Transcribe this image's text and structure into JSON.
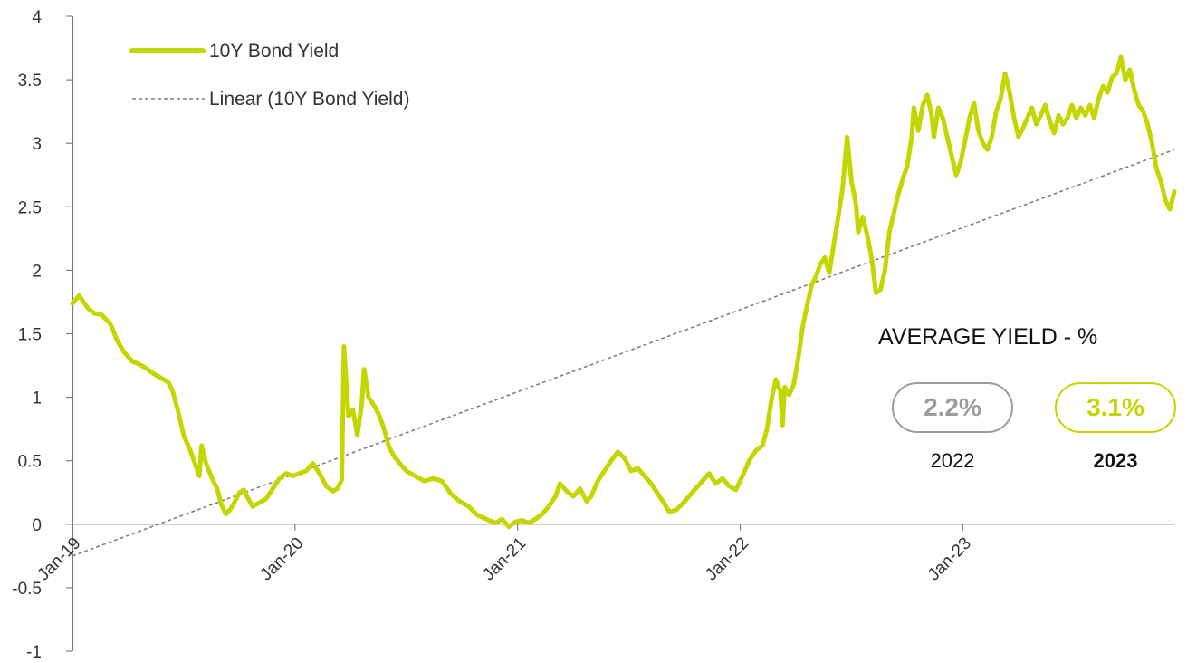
{
  "chart_data": {
    "type": "line",
    "title": "",
    "xlabel": "",
    "ylabel": "",
    "ylim": [
      -1,
      4
    ],
    "yticks": [
      "-1",
      "-0.5",
      "0",
      "0.5",
      "1",
      "1.5",
      "2",
      "2.5",
      "3",
      "3.5",
      "4"
    ],
    "x_tick_labels": [
      "Jan-19",
      "Jan-20",
      "Jan-21",
      "Jan-22",
      "Jan-23"
    ],
    "x_range_years": [
      2019.0,
      2023.95
    ],
    "grid": false,
    "legend_position": "top-left",
    "series": [
      {
        "name": "10Y Bond Yield",
        "color": "#c3d600",
        "points": [
          [
            2019.0,
            1.74
          ],
          [
            2019.03,
            1.8
          ],
          [
            2019.07,
            1.7
          ],
          [
            2019.1,
            1.66
          ],
          [
            2019.13,
            1.65
          ],
          [
            2019.17,
            1.58
          ],
          [
            2019.2,
            1.45
          ],
          [
            2019.23,
            1.36
          ],
          [
            2019.27,
            1.28
          ],
          [
            2019.3,
            1.26
          ],
          [
            2019.33,
            1.23
          ],
          [
            2019.37,
            1.18
          ],
          [
            2019.4,
            1.15
          ],
          [
            2019.43,
            1.12
          ],
          [
            2019.45,
            1.05
          ],
          [
            2019.47,
            0.92
          ],
          [
            2019.5,
            0.7
          ],
          [
            2019.53,
            0.58
          ],
          [
            2019.55,
            0.48
          ],
          [
            2019.57,
            0.38
          ],
          [
            2019.58,
            0.62
          ],
          [
            2019.6,
            0.48
          ],
          [
            2019.63,
            0.35
          ],
          [
            2019.65,
            0.28
          ],
          [
            2019.67,
            0.15
          ],
          [
            2019.69,
            0.08
          ],
          [
            2019.71,
            0.12
          ],
          [
            2019.73,
            0.18
          ],
          [
            2019.75,
            0.25
          ],
          [
            2019.77,
            0.27
          ],
          [
            2019.79,
            0.2
          ],
          [
            2019.81,
            0.14
          ],
          [
            2019.84,
            0.17
          ],
          [
            2019.87,
            0.2
          ],
          [
            2019.9,
            0.28
          ],
          [
            2019.93,
            0.36
          ],
          [
            2019.96,
            0.4
          ],
          [
            2019.99,
            0.38
          ],
          [
            2020.02,
            0.4
          ],
          [
            2020.05,
            0.42
          ],
          [
            2020.08,
            0.48
          ],
          [
            2020.11,
            0.4
          ],
          [
            2020.14,
            0.3
          ],
          [
            2020.17,
            0.26
          ],
          [
            2020.19,
            0.28
          ],
          [
            2020.21,
            0.35
          ],
          [
            2020.22,
            1.4
          ],
          [
            2020.24,
            0.85
          ],
          [
            2020.26,
            0.9
          ],
          [
            2020.28,
            0.7
          ],
          [
            2020.3,
            0.95
          ],
          [
            2020.31,
            1.22
          ],
          [
            2020.33,
            1.0
          ],
          [
            2020.36,
            0.92
          ],
          [
            2020.38,
            0.85
          ],
          [
            2020.4,
            0.75
          ],
          [
            2020.42,
            0.62
          ],
          [
            2020.44,
            0.55
          ],
          [
            2020.47,
            0.48
          ],
          [
            2020.5,
            0.42
          ],
          [
            2020.54,
            0.38
          ],
          [
            2020.58,
            0.34
          ],
          [
            2020.62,
            0.36
          ],
          [
            2020.66,
            0.34
          ],
          [
            2020.7,
            0.24
          ],
          [
            2020.74,
            0.18
          ],
          [
            2020.78,
            0.14
          ],
          [
            2020.82,
            0.07
          ],
          [
            2020.86,
            0.04
          ],
          [
            2020.9,
            0.01
          ],
          [
            2020.93,
            0.04
          ],
          [
            2020.96,
            -0.02
          ],
          [
            2020.99,
            0.02
          ],
          [
            2021.02,
            0.03
          ],
          [
            2021.05,
            0.01
          ],
          [
            2021.08,
            0.04
          ],
          [
            2021.11,
            0.08
          ],
          [
            2021.14,
            0.14
          ],
          [
            2021.17,
            0.22
          ],
          [
            2021.19,
            0.32
          ],
          [
            2021.22,
            0.26
          ],
          [
            2021.25,
            0.22
          ],
          [
            2021.28,
            0.28
          ],
          [
            2021.31,
            0.18
          ],
          [
            2021.33,
            0.22
          ],
          [
            2021.36,
            0.34
          ],
          [
            2021.39,
            0.42
          ],
          [
            2021.42,
            0.5
          ],
          [
            2021.45,
            0.57
          ],
          [
            2021.48,
            0.52
          ],
          [
            2021.51,
            0.42
          ],
          [
            2021.54,
            0.44
          ],
          [
            2021.57,
            0.38
          ],
          [
            2021.6,
            0.32
          ],
          [
            2021.63,
            0.24
          ],
          [
            2021.66,
            0.16
          ],
          [
            2021.68,
            0.1
          ],
          [
            2021.71,
            0.11
          ],
          [
            2021.74,
            0.16
          ],
          [
            2021.77,
            0.22
          ],
          [
            2021.8,
            0.28
          ],
          [
            2021.83,
            0.34
          ],
          [
            2021.86,
            0.4
          ],
          [
            2021.89,
            0.32
          ],
          [
            2021.92,
            0.36
          ],
          [
            2021.95,
            0.3
          ],
          [
            2021.98,
            0.27
          ],
          [
            2022.01,
            0.38
          ],
          [
            2022.04,
            0.5
          ],
          [
            2022.07,
            0.58
          ],
          [
            2022.1,
            0.62
          ],
          [
            2022.12,
            0.75
          ],
          [
            2022.14,
            0.98
          ],
          [
            2022.16,
            1.14
          ],
          [
            2022.18,
            1.05
          ],
          [
            2022.19,
            0.78
          ],
          [
            2022.2,
            1.08
          ],
          [
            2022.22,
            1.02
          ],
          [
            2022.24,
            1.1
          ],
          [
            2022.26,
            1.3
          ],
          [
            2022.28,
            1.55
          ],
          [
            2022.3,
            1.72
          ],
          [
            2022.32,
            1.88
          ],
          [
            2022.34,
            1.95
          ],
          [
            2022.36,
            2.05
          ],
          [
            2022.38,
            2.1
          ],
          [
            2022.4,
            1.98
          ],
          [
            2022.42,
            2.2
          ],
          [
            2022.44,
            2.42
          ],
          [
            2022.46,
            2.65
          ],
          [
            2022.47,
            2.85
          ],
          [
            2022.48,
            3.05
          ],
          [
            2022.5,
            2.7
          ],
          [
            2022.52,
            2.52
          ],
          [
            2022.53,
            2.3
          ],
          [
            2022.55,
            2.42
          ],
          [
            2022.57,
            2.28
          ],
          [
            2022.59,
            2.1
          ],
          [
            2022.61,
            1.82
          ],
          [
            2022.63,
            1.85
          ],
          [
            2022.65,
            2.0
          ],
          [
            2022.67,
            2.3
          ],
          [
            2022.69,
            2.45
          ],
          [
            2022.71,
            2.6
          ],
          [
            2022.73,
            2.72
          ],
          [
            2022.75,
            2.82
          ],
          [
            2022.77,
            3.05
          ],
          [
            2022.78,
            3.28
          ],
          [
            2022.8,
            3.1
          ],
          [
            2022.82,
            3.3
          ],
          [
            2022.84,
            3.38
          ],
          [
            2022.86,
            3.22
          ],
          [
            2022.87,
            3.05
          ],
          [
            2022.89,
            3.28
          ],
          [
            2022.91,
            3.2
          ],
          [
            2022.93,
            3.05
          ],
          [
            2022.95,
            2.9
          ],
          [
            2022.97,
            2.75
          ],
          [
            2022.99,
            2.85
          ],
          [
            2023.01,
            3.02
          ],
          [
            2023.03,
            3.2
          ],
          [
            2023.05,
            3.32
          ],
          [
            2023.07,
            3.1
          ],
          [
            2023.09,
            3.0
          ],
          [
            2023.11,
            2.95
          ],
          [
            2023.13,
            3.05
          ],
          [
            2023.15,
            3.25
          ],
          [
            2023.17,
            3.35
          ],
          [
            2023.19,
            3.55
          ],
          [
            2023.21,
            3.4
          ],
          [
            2023.23,
            3.2
          ],
          [
            2023.25,
            3.05
          ],
          [
            2023.27,
            3.12
          ],
          [
            2023.29,
            3.2
          ],
          [
            2023.31,
            3.28
          ],
          [
            2023.33,
            3.15
          ],
          [
            2023.35,
            3.22
          ],
          [
            2023.37,
            3.3
          ],
          [
            2023.39,
            3.18
          ],
          [
            2023.41,
            3.08
          ],
          [
            2023.43,
            3.22
          ],
          [
            2023.45,
            3.15
          ],
          [
            2023.47,
            3.2
          ],
          [
            2023.49,
            3.3
          ],
          [
            2023.51,
            3.2
          ],
          [
            2023.53,
            3.28
          ],
          [
            2023.55,
            3.22
          ],
          [
            2023.57,
            3.3
          ],
          [
            2023.59,
            3.2
          ],
          [
            2023.61,
            3.35
          ],
          [
            2023.63,
            3.45
          ],
          [
            2023.65,
            3.4
          ],
          [
            2023.67,
            3.52
          ],
          [
            2023.69,
            3.55
          ],
          [
            2023.71,
            3.68
          ],
          [
            2023.73,
            3.5
          ],
          [
            2023.75,
            3.58
          ],
          [
            2023.77,
            3.42
          ],
          [
            2023.79,
            3.3
          ],
          [
            2023.81,
            3.25
          ],
          [
            2023.83,
            3.15
          ],
          [
            2023.85,
            3.0
          ],
          [
            2023.87,
            2.8
          ],
          [
            2023.89,
            2.7
          ],
          [
            2023.91,
            2.55
          ],
          [
            2023.93,
            2.48
          ],
          [
            2023.95,
            2.62
          ]
        ]
      },
      {
        "name": "Linear (10Y Bond Yield)",
        "color": "#7f7f7f",
        "style": "dashed",
        "points": [
          [
            2019.0,
            -0.25
          ],
          [
            2023.95,
            2.95
          ]
        ]
      }
    ]
  },
  "average_panel": {
    "title": "AVERAGE YIELD - %",
    "items": [
      {
        "value": "2.2%",
        "year": "2022",
        "color": "#9c9c9c",
        "bold_year": false
      },
      {
        "value": "3.1%",
        "year": "2023",
        "color": "#c3d600",
        "bold_year": true
      }
    ]
  }
}
